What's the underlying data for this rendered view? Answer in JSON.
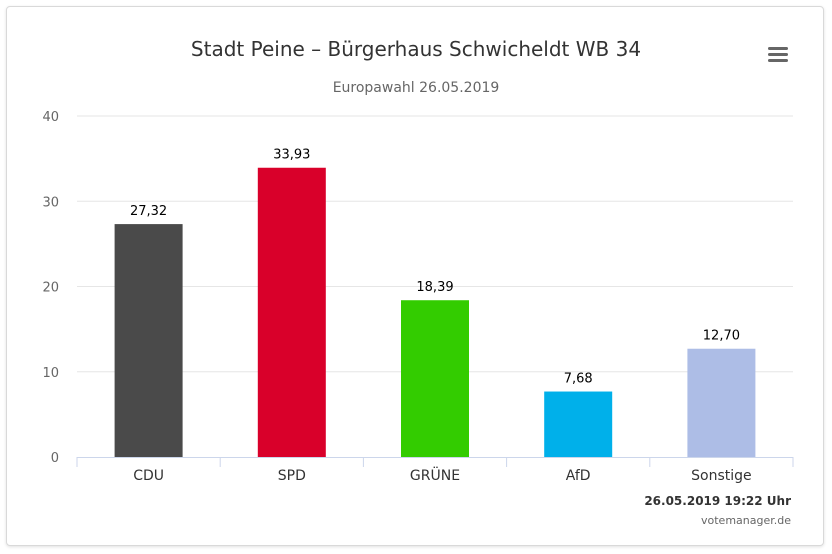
{
  "chart_data": {
    "type": "bar",
    "title": "Stadt Peine – Bürgerhaus Schwicheldt WB 34",
    "subtitle": "Europawahl 26.05.2019",
    "categories": [
      "CDU",
      "SPD",
      "GRÜNE",
      "AfD",
      "Sonstige"
    ],
    "values": [
      27.32,
      33.93,
      18.39,
      7.68,
      12.7
    ],
    "value_labels": [
      "27,32",
      "33,93",
      "18,39",
      "7,68",
      "12,70"
    ],
    "colors": [
      "#4a4a4a",
      "#d9002a",
      "#33cc00",
      "#00b0ea",
      "#adbde6"
    ],
    "ylim": [
      0,
      40
    ],
    "yticks": [
      0,
      10,
      20,
      30,
      40
    ],
    "grid": true,
    "legend": "none"
  },
  "footer": {
    "timestamp": "26.05.2019 19:22 Uhr",
    "credit": "votemanager.de"
  },
  "menu": {
    "icon": "hamburger-menu-icon"
  }
}
